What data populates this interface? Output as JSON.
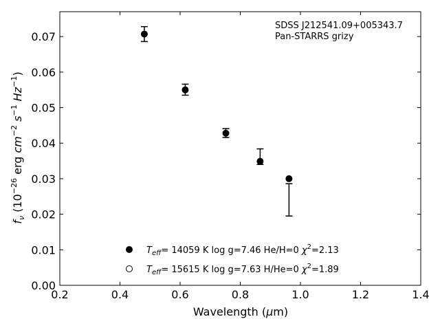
{
  "chart_data": {
    "type": "scatter",
    "annotation": [
      "SDSS J212541.09+005343.7",
      "Pan-STARRS grizy"
    ],
    "xlabel": "Wavelength (μm)",
    "ylabel": "fν (10⁻²⁶ erg cm⁻² s⁻¹ Hz⁻¹)",
    "xlim": [
      0.2,
      1.4
    ],
    "ylim": [
      0.0,
      0.077
    ],
    "xticks": [
      "0.2",
      "0.4",
      "0.6",
      "0.8",
      "1.0",
      "1.2",
      "1.4"
    ],
    "yticks": [
      "0.00",
      "0.01",
      "0.02",
      "0.03",
      "0.04",
      "0.05",
      "0.06",
      "0.07"
    ],
    "series": [
      {
        "name": "T_eff= 14059 K  log g=7.46  He/H=0  χ²=2.13",
        "marker": "filled-circle",
        "points": [
          {
            "x": 0.481,
            "y": 0.0707
          },
          {
            "x": 0.617,
            "y": 0.055
          },
          {
            "x": 0.752,
            "y": 0.0428
          },
          {
            "x": 0.866,
            "y": 0.0349
          },
          {
            "x": 0.962,
            "y": 0.03
          }
        ]
      },
      {
        "name": "T_eff= 15615 K  log g=7.63  H/He=0  χ²=1.89",
        "marker": "open-circle",
        "points": []
      }
    ],
    "observed": {
      "errorbars": [
        {
          "x": 0.481,
          "y": 0.0707,
          "ylow": 0.0686,
          "yhigh": 0.0728
        },
        {
          "x": 0.617,
          "y": 0.055,
          "ylow": 0.0535,
          "yhigh": 0.0566
        },
        {
          "x": 0.752,
          "y": 0.0428,
          "ylow": 0.0416,
          "yhigh": 0.0441
        },
        {
          "x": 0.866,
          "y": 0.0362,
          "ylow": 0.034,
          "yhigh": 0.0384
        },
        {
          "x": 0.962,
          "y": 0.024,
          "ylow": 0.0195,
          "yhigh": 0.0286
        }
      ]
    },
    "legend_position": "lower-center",
    "grid": false
  },
  "colors": {
    "axis": "#000000",
    "marker": "#000000",
    "background": "#ffffff"
  }
}
